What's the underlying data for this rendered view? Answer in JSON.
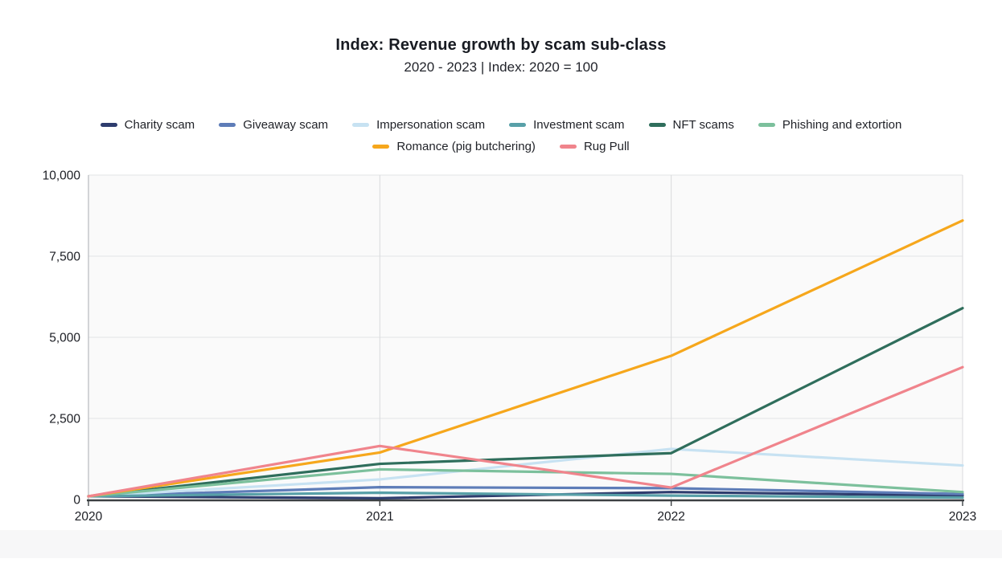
{
  "header": {
    "title": "Index: Revenue growth by scam sub-class",
    "subtitle": "2020 - 2023 | Index: 2020 = 100"
  },
  "chart_data": {
    "type": "line",
    "title": "Index: Revenue growth by scam sub-class",
    "subtitle": "2020 - 2023 | Index: 2020 = 100",
    "x": [
      "2020",
      "2021",
      "2022",
      "2023"
    ],
    "series": [
      {
        "name": "Charity scam",
        "color": "#2e3d6e",
        "values": [
          100,
          40,
          230,
          120
        ]
      },
      {
        "name": "Giveaway scam",
        "color": "#5e7db8",
        "values": [
          100,
          380,
          350,
          170
        ]
      },
      {
        "name": "Impersonation scam",
        "color": "#c7e2f2",
        "values": [
          100,
          620,
          1560,
          1050
        ]
      },
      {
        "name": "Investment scam",
        "color": "#58a0a8",
        "values": [
          100,
          210,
          120,
          60
        ]
      },
      {
        "name": "NFT scams",
        "color": "#2f6e5c",
        "values": [
          100,
          1100,
          1430,
          5900
        ]
      },
      {
        "name": "Phishing and extortion",
        "color": "#7cc09c",
        "values": [
          100,
          930,
          790,
          230
        ]
      },
      {
        "name": "Romance (pig butchering)",
        "color": "#f6a71c",
        "values": [
          100,
          1450,
          4430,
          8600
        ]
      },
      {
        "name": "Rug Pull",
        "color": "#f0848c",
        "values": [
          100,
          1650,
          370,
          4080
        ]
      }
    ],
    "ylim": [
      0,
      10000
    ],
    "yticks": [
      0,
      2500,
      5000,
      7500,
      10000
    ],
    "ytick_labels": [
      "0",
      "2,500",
      "5,000",
      "7,500",
      "10,000"
    ],
    "grid": "on",
    "legend_position": "top",
    "legend_rows": [
      6,
      2
    ],
    "colors": {
      "grid_line": "#e3e4e6",
      "vertical_grid": "#d9dadc",
      "left_border": "#b6b9be",
      "axis_line": "#3c4043",
      "tick_text": "#1c1e24",
      "plot_bg": "#fafafa"
    }
  }
}
